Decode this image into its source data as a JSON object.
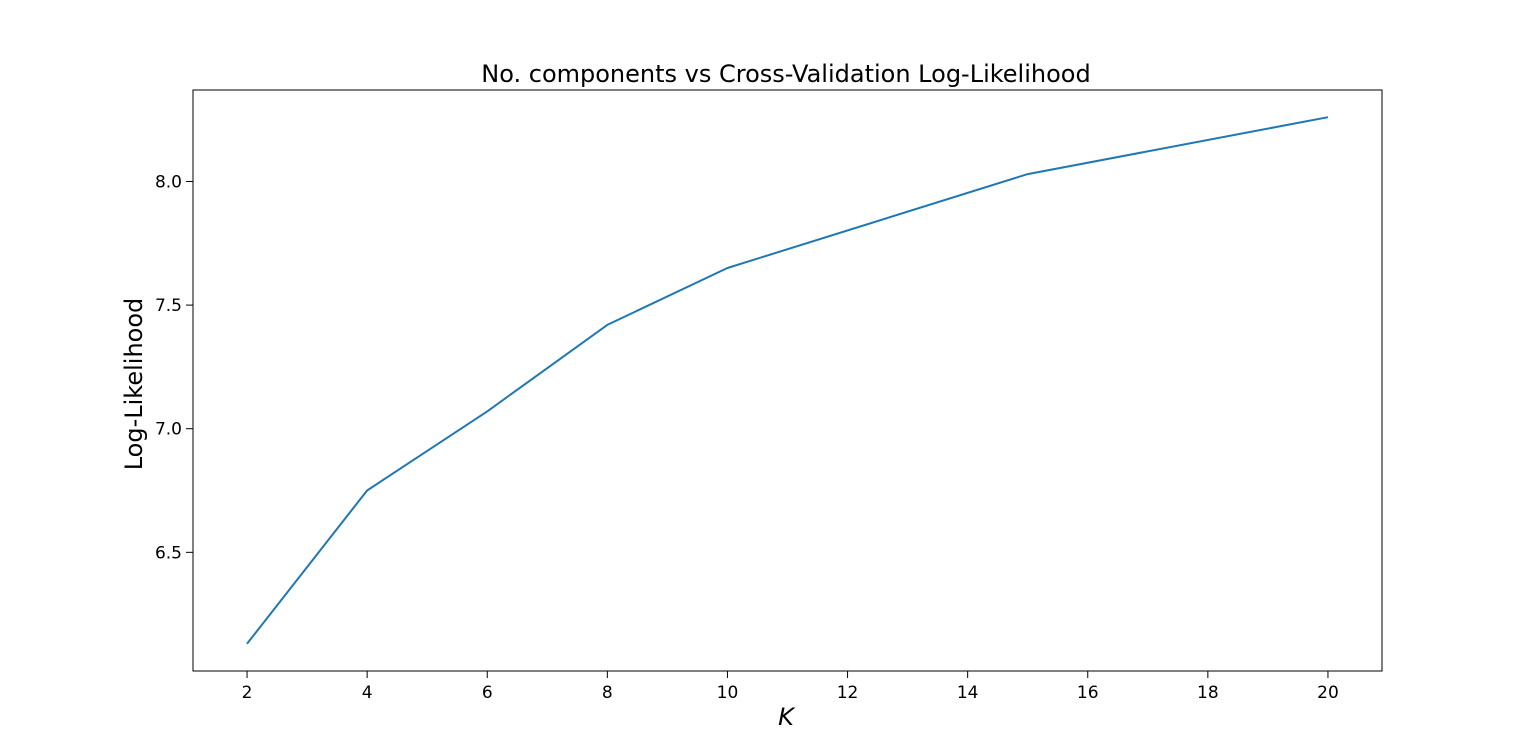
{
  "chart_data": {
    "type": "line",
    "title": "No. components vs Cross-Validation Log-Likelihood",
    "xlabel": "K",
    "ylabel": "Log-Likelihood",
    "x": [
      2,
      4,
      6,
      8,
      10,
      15,
      20
    ],
    "series": [
      {
        "values": [
          6.13,
          6.75,
          7.07,
          7.42,
          7.65,
          8.03,
          8.26
        ],
        "color": "#1f77b4"
      }
    ],
    "xlim": [
      1.1,
      20.9
    ],
    "ylim": [
      6.02,
      8.37
    ],
    "xticks": [
      2,
      4,
      6,
      8,
      10,
      12,
      14,
      16,
      18,
      20
    ],
    "yticks": [
      6.5,
      7.0,
      7.5,
      8.0
    ],
    "ytick_labels": [
      "6.5",
      "7.0",
      "7.5",
      "8.0"
    ],
    "grid": false,
    "legend": "none"
  }
}
